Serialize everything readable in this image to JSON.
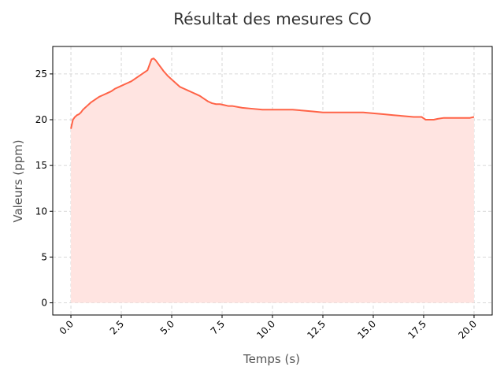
{
  "chart_data": {
    "type": "area",
    "title": "Résultat des mesures CO",
    "xlabel": "Temps (s)",
    "ylabel": "Valeurs (ppm)",
    "xlim": [
      -0.9,
      20.9
    ],
    "ylim": [
      -1.33,
      28.0
    ],
    "x_ticks": [
      0.0,
      2.5,
      5.0,
      7.5,
      10.0,
      12.5,
      15.0,
      17.5,
      20.0
    ],
    "x_tick_labels": [
      "0.0",
      "2.5",
      "5.0",
      "7.5",
      "10.0",
      "12.5",
      "15.0",
      "17.5",
      "20.0"
    ],
    "y_ticks": [
      0,
      5,
      10,
      15,
      20,
      25
    ],
    "y_tick_labels": [
      "0",
      "5",
      "10",
      "15",
      "20",
      "25"
    ],
    "grid": true,
    "line_color": "#ff6347",
    "fill_color": "#ffe4e1",
    "series": [
      {
        "x": [
          0.0,
          0.1,
          0.2,
          0.3,
          0.4,
          0.5,
          0.6,
          0.7,
          0.8,
          0.9,
          1.0,
          1.2,
          1.4,
          1.6,
          1.8,
          2.0,
          2.2,
          2.4,
          2.6,
          2.8,
          3.0,
          3.2,
          3.4,
          3.6,
          3.8,
          4.0,
          4.1,
          4.2,
          4.3,
          4.4,
          4.5,
          4.6,
          4.8,
          5.0,
          5.2,
          5.4,
          5.6,
          5.8,
          6.0,
          6.2,
          6.4,
          6.6,
          6.8,
          7.0,
          7.2,
          7.4,
          7.6,
          7.8,
          8.0,
          8.5,
          9.0,
          9.5,
          10.0,
          10.5,
          11.0,
          11.5,
          12.0,
          12.5,
          13.0,
          13.5,
          14.0,
          14.5,
          15.0,
          15.5,
          16.0,
          16.5,
          17.0,
          17.4,
          17.6,
          17.8,
          18.0,
          18.2,
          18.5,
          19.0,
          19.2,
          19.4,
          19.6,
          19.8,
          20.0
        ],
        "y": [
          19.0,
          20.0,
          20.3,
          20.5,
          20.6,
          20.8,
          21.1,
          21.3,
          21.5,
          21.7,
          21.9,
          22.2,
          22.5,
          22.7,
          22.9,
          23.1,
          23.4,
          23.6,
          23.8,
          24.0,
          24.2,
          24.5,
          24.8,
          25.1,
          25.4,
          26.6,
          26.7,
          26.5,
          26.2,
          25.9,
          25.6,
          25.3,
          24.8,
          24.4,
          24.0,
          23.6,
          23.4,
          23.2,
          23.0,
          22.8,
          22.6,
          22.3,
          22.0,
          21.8,
          21.7,
          21.7,
          21.6,
          21.5,
          21.5,
          21.3,
          21.2,
          21.1,
          21.1,
          21.1,
          21.1,
          21.0,
          20.9,
          20.8,
          20.8,
          20.8,
          20.8,
          20.8,
          20.7,
          20.6,
          20.5,
          20.4,
          20.3,
          20.3,
          20.0,
          20.0,
          20.0,
          20.1,
          20.2,
          20.2,
          20.2,
          20.2,
          20.2,
          20.2,
          20.3
        ]
      }
    ]
  }
}
